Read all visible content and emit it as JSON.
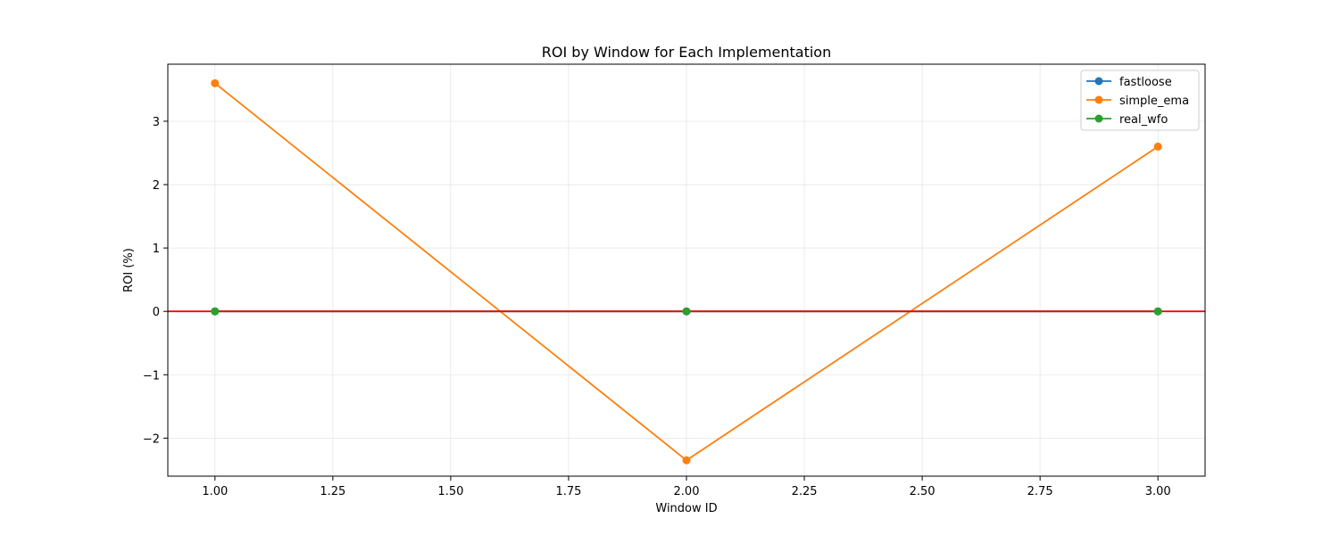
{
  "chart_data": {
    "type": "line",
    "title": "ROI by Window for Each Implementation",
    "xlabel": "Window ID",
    "ylabel": "ROI (%)",
    "xlim": [
      0.9,
      3.1
    ],
    "ylim": [
      -2.6,
      3.9
    ],
    "xticks": [
      1.0,
      1.25,
      1.5,
      1.75,
      2.0,
      2.25,
      2.5,
      2.75,
      3.0
    ],
    "xtick_labels": [
      "1.00",
      "1.25",
      "1.50",
      "1.75",
      "2.00",
      "2.25",
      "2.50",
      "2.75",
      "3.00"
    ],
    "yticks": [
      -2,
      -1,
      0,
      1,
      2,
      3
    ],
    "ytick_labels": [
      "−2",
      "−1",
      "0",
      "1",
      "2",
      "3"
    ],
    "grid": true,
    "legend_position": "top-right",
    "x": [
      1,
      2,
      3
    ],
    "series": [
      {
        "name": "fastloose",
        "color": "#1f77b4",
        "marker": "circle",
        "values": [
          0,
          0,
          0
        ]
      },
      {
        "name": "simple_ema",
        "color": "#ff7f0e",
        "marker": "circle",
        "values": [
          3.6,
          -2.35,
          2.6
        ]
      },
      {
        "name": "real_wfo",
        "color": "#2ca02c",
        "marker": "circle",
        "values": [
          0,
          0,
          0
        ]
      }
    ],
    "reference_lines": [
      {
        "axis": "y",
        "value": 0,
        "color": "#ff0000"
      }
    ]
  }
}
